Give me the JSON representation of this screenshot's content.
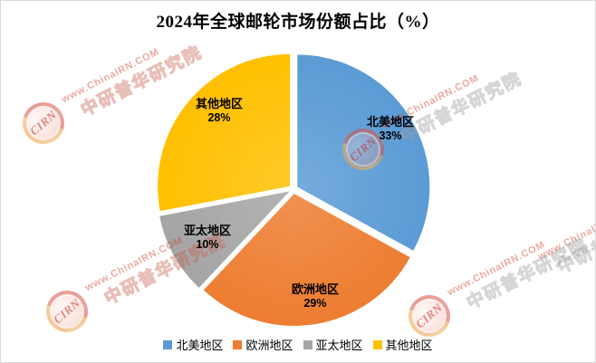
{
  "title": "2024年全球邮轮市场份额占比（%）",
  "chart_data": {
    "type": "pie",
    "title": "2024年全球邮轮市场份额占比（%）",
    "unit": "%",
    "categories": [
      "北美地区",
      "欧洲地区",
      "亚太地区",
      "其他地区"
    ],
    "values": [
      33,
      29,
      10,
      28
    ],
    "colors": [
      "#5B9BD5",
      "#ED7D31",
      "#A5A5A5",
      "#FFC000"
    ],
    "start_angle_deg": 0,
    "direction": "clockwise",
    "exploded": true,
    "labels_inside": true,
    "legend_position": "bottom",
    "slices": [
      {
        "label": "北美地区",
        "value": 33,
        "pct_label": "33%",
        "color": "#5B9BD5"
      },
      {
        "label": "欧洲地区",
        "value": 29,
        "pct_label": "29%",
        "color": "#ED7D31"
      },
      {
        "label": "亚太地区",
        "value": 10,
        "pct_label": "10%",
        "color": "#A5A5A5"
      },
      {
        "label": "其他地区",
        "value": 28,
        "pct_label": "28%",
        "color": "#FFC000"
      }
    ]
  },
  "watermark": {
    "line1": "www.ChinaIRN.COM",
    "line2": "中研普华研究院",
    "logo_text": "CIRN"
  }
}
